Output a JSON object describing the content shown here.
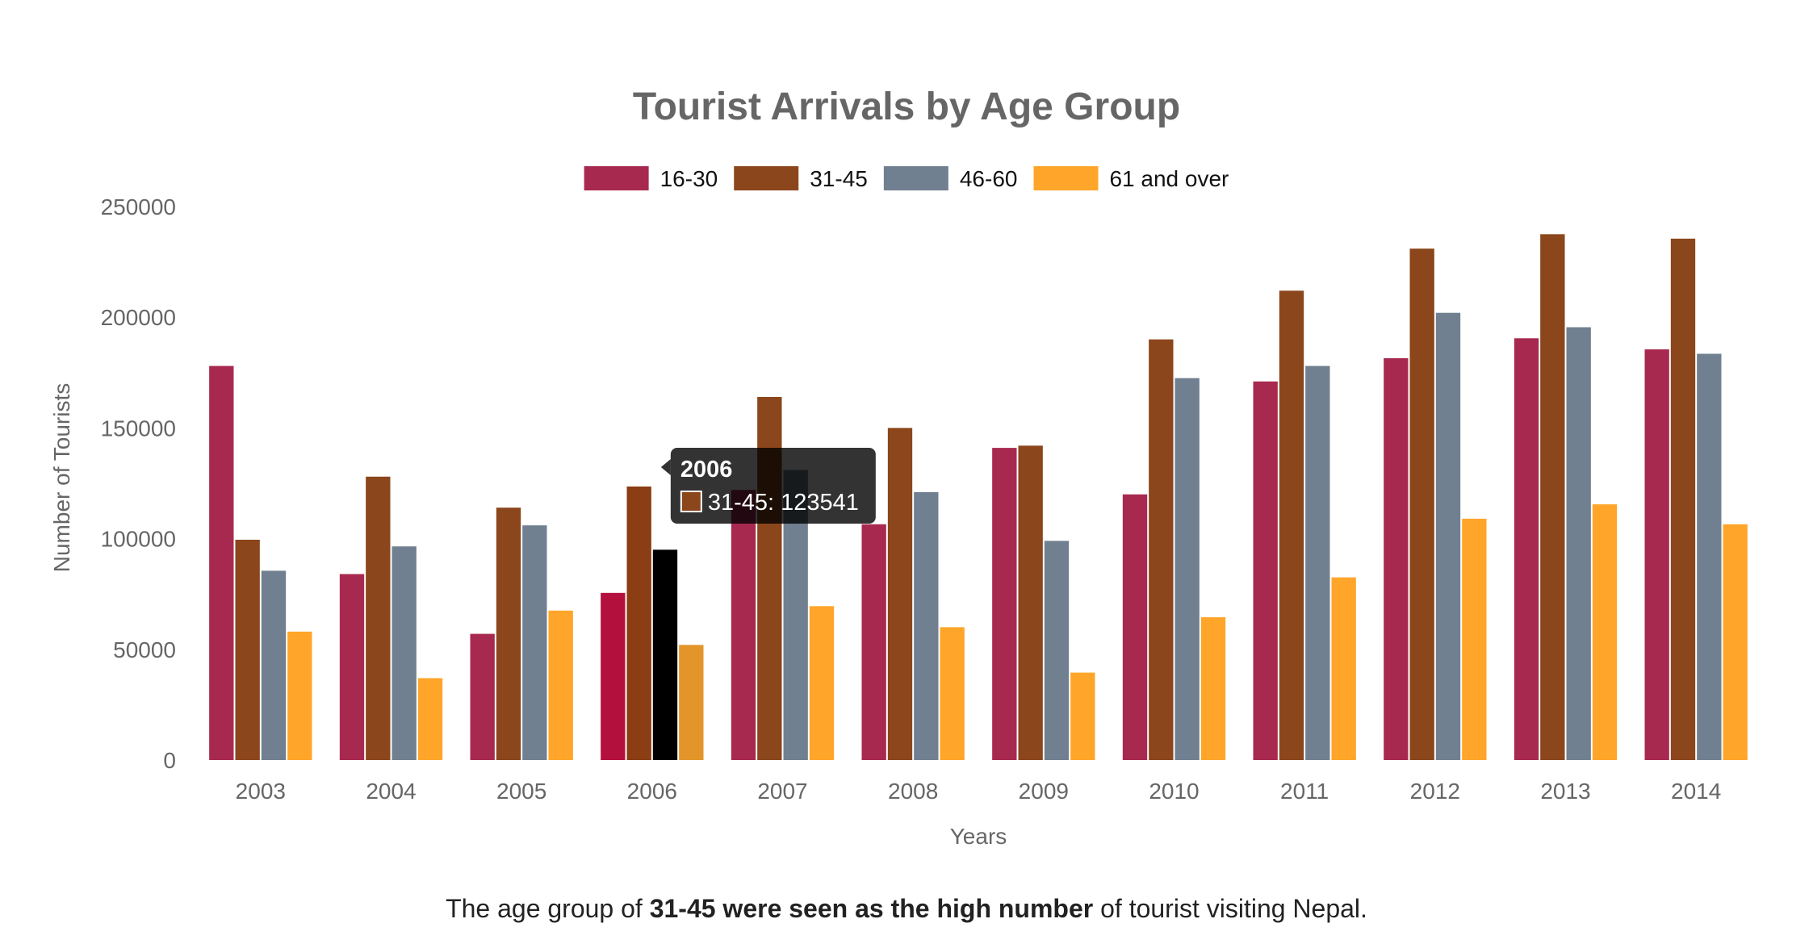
{
  "chart_data": {
    "type": "bar",
    "title": "Tourist Arrivals  by Age Group",
    "xlabel": "Years",
    "ylabel": "Number of Tourists",
    "ylim": [
      0,
      250000
    ],
    "yticks": [
      0,
      50000,
      100000,
      150000,
      200000,
      250000
    ],
    "grid": false,
    "legend_position": "top-center",
    "categories": [
      "2003",
      "2004",
      "2005",
      "2006",
      "2007",
      "2008",
      "2009",
      "2010",
      "2011",
      "2012",
      "2013",
      "2014"
    ],
    "series": [
      {
        "name": "16-30",
        "color": "#a8294f",
        "values": [
          178000,
          84000,
          57000,
          75500,
          122000,
          106500,
          141000,
          120000,
          171000,
          181500,
          190500,
          185500
        ]
      },
      {
        "name": "31-45",
        "color": "#8b461c",
        "values": [
          99500,
          128000,
          114000,
          123541,
          164000,
          150000,
          142000,
          190000,
          212000,
          231000,
          237500,
          235500
        ]
      },
      {
        "name": "46-60",
        "color": "#708090",
        "values": [
          85500,
          96500,
          106000,
          95000,
          131000,
          121000,
          99000,
          172500,
          178000,
          202000,
          195500,
          183500
        ]
      },
      {
        "name": "61 and over",
        "color": "#ffa52a",
        "values": [
          58000,
          37000,
          67500,
          52000,
          69500,
          60000,
          39500,
          64500,
          82500,
          109000,
          115500,
          106500
        ]
      }
    ],
    "hover": {
      "category_index": 3,
      "colors": [
        "#b4103e",
        "#8b3d13",
        "#000000",
        "#e3952a"
      ]
    },
    "tooltip": {
      "title": "2006",
      "series_index": 1,
      "label": "31-45: 123541"
    }
  },
  "caption": {
    "prefix": "The age group of ",
    "bold": "31-45 were seen as the high number",
    "suffix": " of tourist visiting Nepal."
  }
}
